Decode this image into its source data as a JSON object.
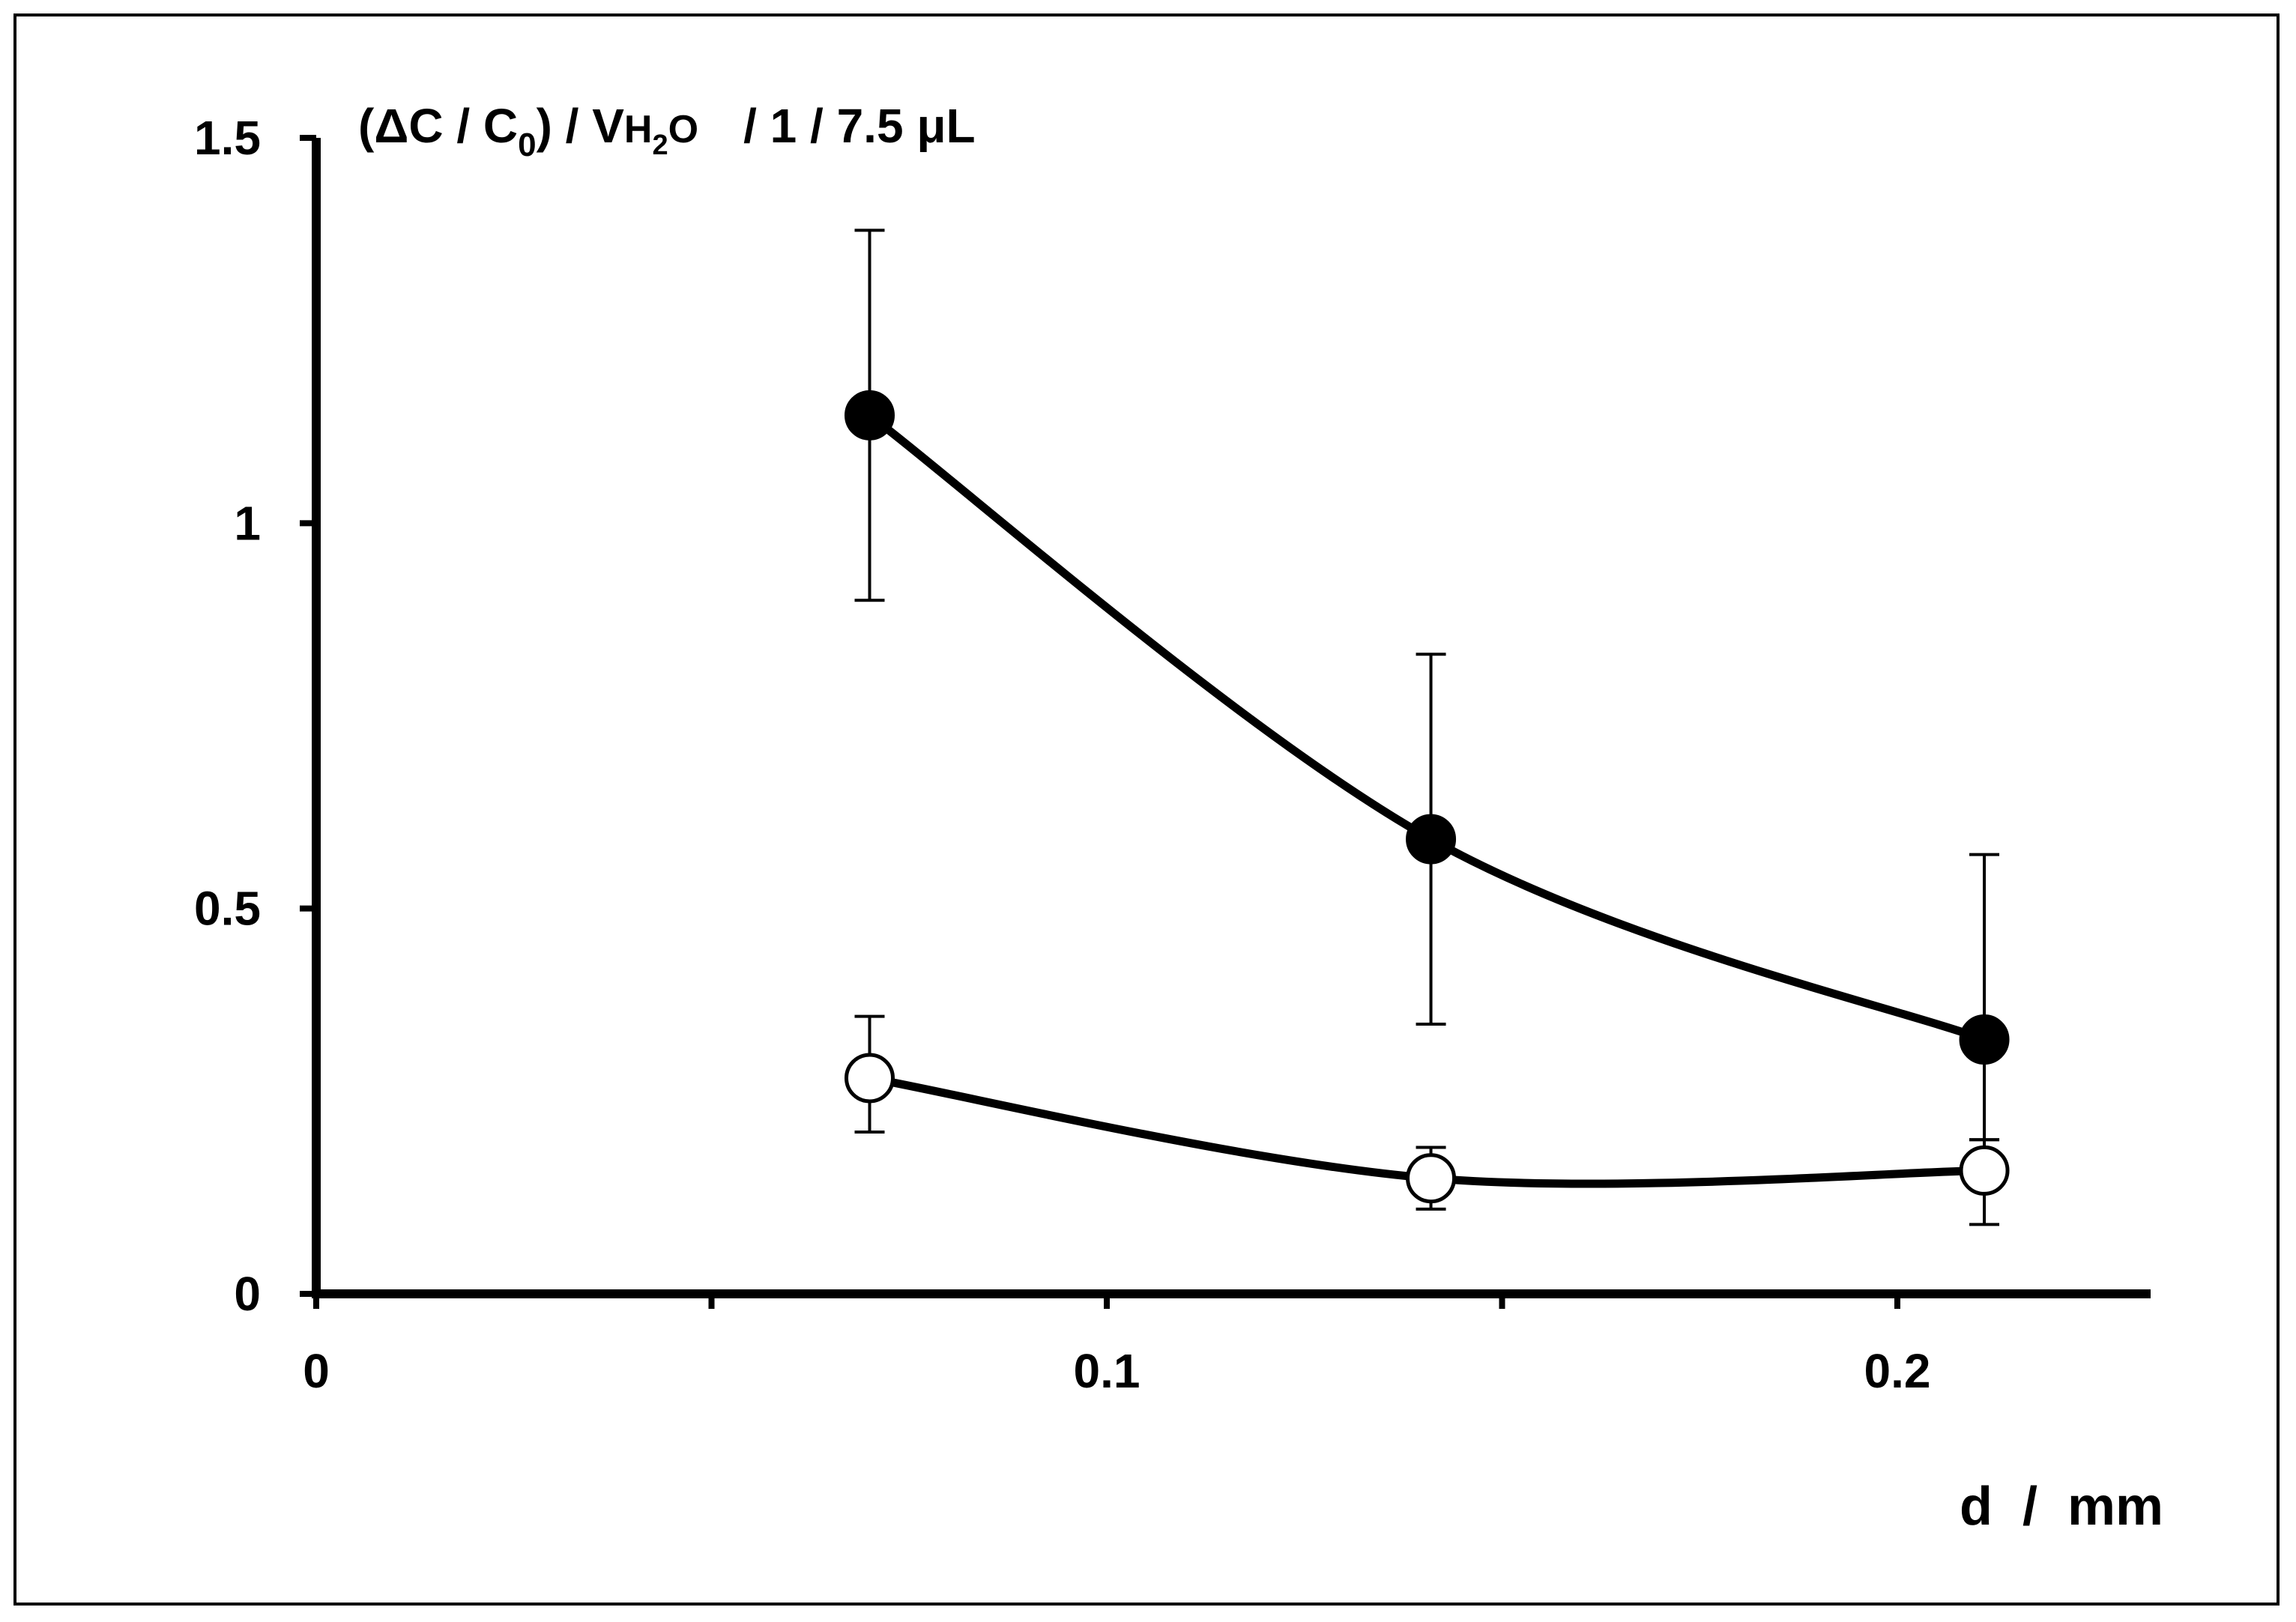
{
  "chart_data": {
    "type": "line",
    "title": "",
    "ylabel": {
      "lead": "(ΔC / C",
      "lead_sub": "0",
      "mid": ") / V",
      "h": "H",
      "h_sub": "2",
      "o": "O",
      "units": "/   1 / 7.5 μL"
    },
    "xlabel": "d  /  mm",
    "xlim": [
      0,
      0.23
    ],
    "ylim": [
      0,
      1.5
    ],
    "x_ticks": [
      0,
      0.05,
      0.1,
      0.15,
      0.2
    ],
    "x_tick_labels": [
      "0",
      "",
      "0.1",
      "",
      "0.2"
    ],
    "y_ticks": [
      0,
      0.5,
      1,
      1.5
    ],
    "y_tick_labels": [
      "0",
      "0.5",
      "1",
      "1.5"
    ],
    "grid": false,
    "legend": "none",
    "series": [
      {
        "marker": "filled-circle",
        "color": "#000000",
        "x": [
          0.07,
          0.141,
          0.211
        ],
        "y": [
          1.14,
          0.59,
          0.33
        ],
        "err_low": [
          0.9,
          0.35,
          0.2
        ],
        "err_high": [
          1.38,
          0.83,
          0.57
        ]
      },
      {
        "marker": "open-circle",
        "color": "#000000",
        "x": [
          0.07,
          0.141,
          0.211
        ],
        "y": [
          0.28,
          0.15,
          0.16
        ],
        "err_low": [
          0.21,
          0.11,
          0.09
        ],
        "err_high": [
          0.36,
          0.19,
          0.2
        ]
      }
    ]
  }
}
